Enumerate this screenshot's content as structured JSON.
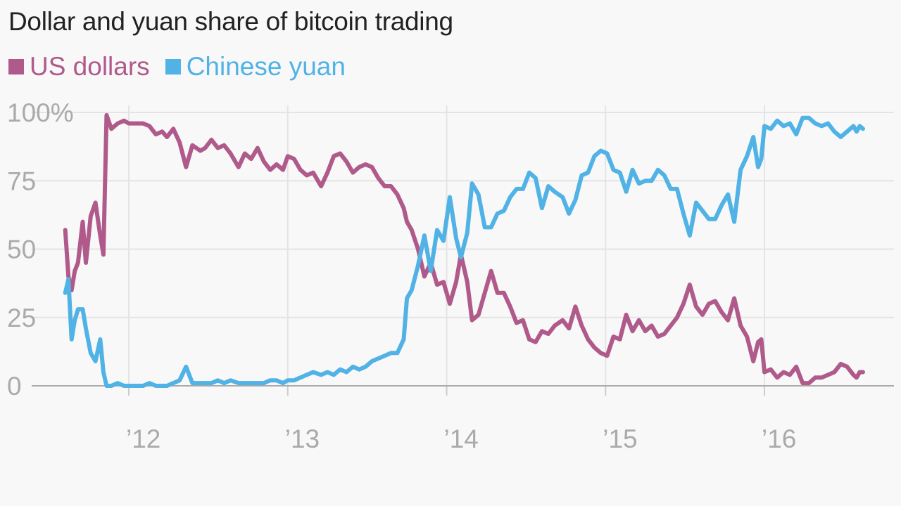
{
  "chart_data": {
    "type": "line",
    "title": "Dollar and yuan share of bitcoin trading",
    "xlabel": "",
    "ylabel": "",
    "xlim": [
      2011.6,
      2016.6
    ],
    "ylim": [
      0,
      100
    ],
    "y_ticks": [
      0,
      25,
      50,
      75,
      100
    ],
    "y_tick_labels": [
      "0",
      "25",
      "50",
      "75",
      "100%"
    ],
    "x_ticks": [
      2012,
      2013,
      2014,
      2015,
      2016
    ],
    "x_tick_labels": [
      "’12",
      "’13",
      "’14",
      "’15",
      "’16"
    ],
    "grid": true,
    "legend_position": "top-left",
    "series": [
      {
        "name": "US dollars",
        "color": "#b05a8b",
        "points": [
          [
            2011.6,
            57
          ],
          [
            2011.62,
            40
          ],
          [
            2011.64,
            35
          ],
          [
            2011.66,
            42
          ],
          [
            2011.68,
            45
          ],
          [
            2011.71,
            60
          ],
          [
            2011.73,
            45
          ],
          [
            2011.76,
            62
          ],
          [
            2011.79,
            67
          ],
          [
            2011.82,
            55
          ],
          [
            2011.84,
            48
          ],
          [
            2011.86,
            99
          ],
          [
            2011.89,
            94
          ],
          [
            2011.93,
            96
          ],
          [
            2011.97,
            97
          ],
          [
            2012.0,
            96
          ],
          [
            2012.05,
            96
          ],
          [
            2012.09,
            96
          ],
          [
            2012.13,
            95
          ],
          [
            2012.17,
            92
          ],
          [
            2012.21,
            93
          ],
          [
            2012.24,
            91
          ],
          [
            2012.28,
            94
          ],
          [
            2012.32,
            89
          ],
          [
            2012.36,
            80
          ],
          [
            2012.4,
            88
          ],
          [
            2012.45,
            86
          ],
          [
            2012.48,
            87
          ],
          [
            2012.52,
            90
          ],
          [
            2012.56,
            87
          ],
          [
            2012.6,
            88
          ],
          [
            2012.64,
            85
          ],
          [
            2012.69,
            80
          ],
          [
            2012.73,
            85
          ],
          [
            2012.77,
            83
          ],
          [
            2012.81,
            87
          ],
          [
            2012.85,
            82
          ],
          [
            2012.89,
            79
          ],
          [
            2012.93,
            81
          ],
          [
            2012.97,
            79
          ],
          [
            2013.0,
            84
          ],
          [
            2013.04,
            83
          ],
          [
            2013.08,
            79
          ],
          [
            2013.12,
            77
          ],
          [
            2013.16,
            78
          ],
          [
            2013.21,
            73
          ],
          [
            2013.25,
            78
          ],
          [
            2013.29,
            84
          ],
          [
            2013.33,
            85
          ],
          [
            2013.37,
            82
          ],
          [
            2013.41,
            78
          ],
          [
            2013.45,
            80
          ],
          [
            2013.49,
            81
          ],
          [
            2013.53,
            80
          ],
          [
            2013.57,
            76
          ],
          [
            2013.61,
            73
          ],
          [
            2013.65,
            73
          ],
          [
            2013.69,
            70
          ],
          [
            2013.73,
            65
          ],
          [
            2013.75,
            60
          ],
          [
            2013.78,
            57
          ],
          [
            2013.82,
            50
          ],
          [
            2013.86,
            40
          ],
          [
            2013.9,
            45
          ],
          [
            2013.94,
            37
          ],
          [
            2013.98,
            38
          ],
          [
            2014.02,
            30
          ],
          [
            2014.06,
            38
          ],
          [
            2014.09,
            48
          ],
          [
            2014.13,
            38
          ],
          [
            2014.16,
            24
          ],
          [
            2014.2,
            26
          ],
          [
            2014.24,
            34
          ],
          [
            2014.28,
            42
          ],
          [
            2014.32,
            34
          ],
          [
            2014.36,
            34
          ],
          [
            2014.4,
            29
          ],
          [
            2014.44,
            23
          ],
          [
            2014.48,
            24
          ],
          [
            2014.52,
            17
          ],
          [
            2014.56,
            16
          ],
          [
            2014.6,
            20
          ],
          [
            2014.64,
            19
          ],
          [
            2014.68,
            22
          ],
          [
            2014.73,
            24
          ],
          [
            2014.77,
            21
          ],
          [
            2014.81,
            29
          ],
          [
            2014.85,
            22
          ],
          [
            2014.89,
            17
          ],
          [
            2014.93,
            14
          ],
          [
            2014.97,
            12
          ],
          [
            2015.01,
            11
          ],
          [
            2015.05,
            18
          ],
          [
            2015.09,
            17
          ],
          [
            2015.13,
            26
          ],
          [
            2015.17,
            20
          ],
          [
            2015.21,
            24
          ],
          [
            2015.25,
            20
          ],
          [
            2015.29,
            22
          ],
          [
            2015.33,
            18
          ],
          [
            2015.37,
            19
          ],
          [
            2015.41,
            22
          ],
          [
            2015.45,
            25
          ],
          [
            2015.49,
            30
          ],
          [
            2015.53,
            37
          ],
          [
            2015.57,
            29
          ],
          [
            2015.61,
            26
          ],
          [
            2015.65,
            30
          ],
          [
            2015.69,
            31
          ],
          [
            2015.73,
            27
          ],
          [
            2015.77,
            24
          ],
          [
            2015.81,
            32
          ],
          [
            2015.85,
            22
          ],
          [
            2015.89,
            18
          ],
          [
            2015.93,
            9
          ],
          [
            2015.96,
            16
          ],
          [
            2015.98,
            17
          ],
          [
            2016.0,
            5
          ],
          [
            2016.04,
            6
          ],
          [
            2016.08,
            3
          ],
          [
            2016.12,
            5
          ],
          [
            2016.16,
            4
          ],
          [
            2016.2,
            7
          ],
          [
            2016.24,
            1
          ],
          [
            2016.28,
            1
          ],
          [
            2016.32,
            3
          ],
          [
            2016.36,
            3
          ],
          [
            2016.4,
            4
          ],
          [
            2016.44,
            5
          ],
          [
            2016.48,
            8
          ],
          [
            2016.52,
            7
          ],
          [
            2016.56,
            4
          ],
          [
            2016.58,
            3
          ],
          [
            2016.6,
            5
          ],
          [
            2016.62,
            5
          ]
        ]
      },
      {
        "name": "Chinese yuan",
        "color": "#51b2e5",
        "points": [
          [
            2011.6,
            34
          ],
          [
            2011.62,
            39
          ],
          [
            2011.64,
            17
          ],
          [
            2011.66,
            24
          ],
          [
            2011.68,
            28
          ],
          [
            2011.71,
            28
          ],
          [
            2011.73,
            21
          ],
          [
            2011.76,
            12
          ],
          [
            2011.79,
            9
          ],
          [
            2011.82,
            17
          ],
          [
            2011.84,
            5
          ],
          [
            2011.86,
            0
          ],
          [
            2011.89,
            0
          ],
          [
            2011.93,
            1
          ],
          [
            2011.97,
            0
          ],
          [
            2012.0,
            0
          ],
          [
            2012.05,
            0
          ],
          [
            2012.09,
            0
          ],
          [
            2012.13,
            1
          ],
          [
            2012.17,
            0
          ],
          [
            2012.21,
            0
          ],
          [
            2012.24,
            0
          ],
          [
            2012.28,
            1
          ],
          [
            2012.32,
            2
          ],
          [
            2012.36,
            7
          ],
          [
            2012.4,
            1
          ],
          [
            2012.45,
            1
          ],
          [
            2012.48,
            1
          ],
          [
            2012.52,
            1
          ],
          [
            2012.56,
            2
          ],
          [
            2012.6,
            1
          ],
          [
            2012.64,
            2
          ],
          [
            2012.69,
            1
          ],
          [
            2012.73,
            1
          ],
          [
            2012.77,
            1
          ],
          [
            2012.81,
            1
          ],
          [
            2012.85,
            1
          ],
          [
            2012.89,
            2
          ],
          [
            2012.93,
            2
          ],
          [
            2012.97,
            1
          ],
          [
            2013.0,
            2
          ],
          [
            2013.04,
            2
          ],
          [
            2013.08,
            3
          ],
          [
            2013.12,
            4
          ],
          [
            2013.16,
            5
          ],
          [
            2013.21,
            4
          ],
          [
            2013.25,
            5
          ],
          [
            2013.29,
            4
          ],
          [
            2013.33,
            6
          ],
          [
            2013.37,
            5
          ],
          [
            2013.41,
            7
          ],
          [
            2013.45,
            6
          ],
          [
            2013.49,
            7
          ],
          [
            2013.53,
            9
          ],
          [
            2013.57,
            10
          ],
          [
            2013.61,
            11
          ],
          [
            2013.65,
            12
          ],
          [
            2013.69,
            12
          ],
          [
            2013.73,
            17
          ],
          [
            2013.75,
            32
          ],
          [
            2013.78,
            35
          ],
          [
            2013.82,
            44
          ],
          [
            2013.86,
            55
          ],
          [
            2013.9,
            42
          ],
          [
            2013.94,
            57
          ],
          [
            2013.98,
            53
          ],
          [
            2014.02,
            69
          ],
          [
            2014.06,
            54
          ],
          [
            2014.09,
            47
          ],
          [
            2014.13,
            56
          ],
          [
            2014.16,
            74
          ],
          [
            2014.2,
            70
          ],
          [
            2014.24,
            58
          ],
          [
            2014.28,
            58
          ],
          [
            2014.32,
            63
          ],
          [
            2014.36,
            64
          ],
          [
            2014.4,
            69
          ],
          [
            2014.44,
            72
          ],
          [
            2014.48,
            72
          ],
          [
            2014.52,
            78
          ],
          [
            2014.56,
            76
          ],
          [
            2014.6,
            65
          ],
          [
            2014.64,
            73
          ],
          [
            2014.68,
            71
          ],
          [
            2014.73,
            69
          ],
          [
            2014.77,
            63
          ],
          [
            2014.81,
            68
          ],
          [
            2014.85,
            77
          ],
          [
            2014.89,
            78
          ],
          [
            2014.93,
            84
          ],
          [
            2014.97,
            86
          ],
          [
            2015.01,
            85
          ],
          [
            2015.05,
            79
          ],
          [
            2015.09,
            78
          ],
          [
            2015.13,
            71
          ],
          [
            2015.17,
            79
          ],
          [
            2015.21,
            74
          ],
          [
            2015.25,
            75
          ],
          [
            2015.29,
            75
          ],
          [
            2015.33,
            79
          ],
          [
            2015.37,
            77
          ],
          [
            2015.41,
            72
          ],
          [
            2015.45,
            72
          ],
          [
            2015.49,
            63
          ],
          [
            2015.53,
            55
          ],
          [
            2015.57,
            67
          ],
          [
            2015.61,
            64
          ],
          [
            2015.65,
            61
          ],
          [
            2015.69,
            61
          ],
          [
            2015.73,
            66
          ],
          [
            2015.77,
            70
          ],
          [
            2015.81,
            60
          ],
          [
            2015.85,
            79
          ],
          [
            2015.89,
            84
          ],
          [
            2015.93,
            91
          ],
          [
            2015.96,
            80
          ],
          [
            2015.98,
            83
          ],
          [
            2016.0,
            95
          ],
          [
            2016.04,
            94
          ],
          [
            2016.08,
            97
          ],
          [
            2016.12,
            95
          ],
          [
            2016.16,
            96
          ],
          [
            2016.2,
            92
          ],
          [
            2016.24,
            98
          ],
          [
            2016.28,
            98
          ],
          [
            2016.32,
            96
          ],
          [
            2016.36,
            95
          ],
          [
            2016.4,
            96
          ],
          [
            2016.44,
            93
          ],
          [
            2016.48,
            91
          ],
          [
            2016.52,
            93
          ],
          [
            2016.56,
            95
          ],
          [
            2016.58,
            93
          ],
          [
            2016.6,
            95
          ],
          [
            2016.62,
            94
          ]
        ]
      }
    ]
  }
}
